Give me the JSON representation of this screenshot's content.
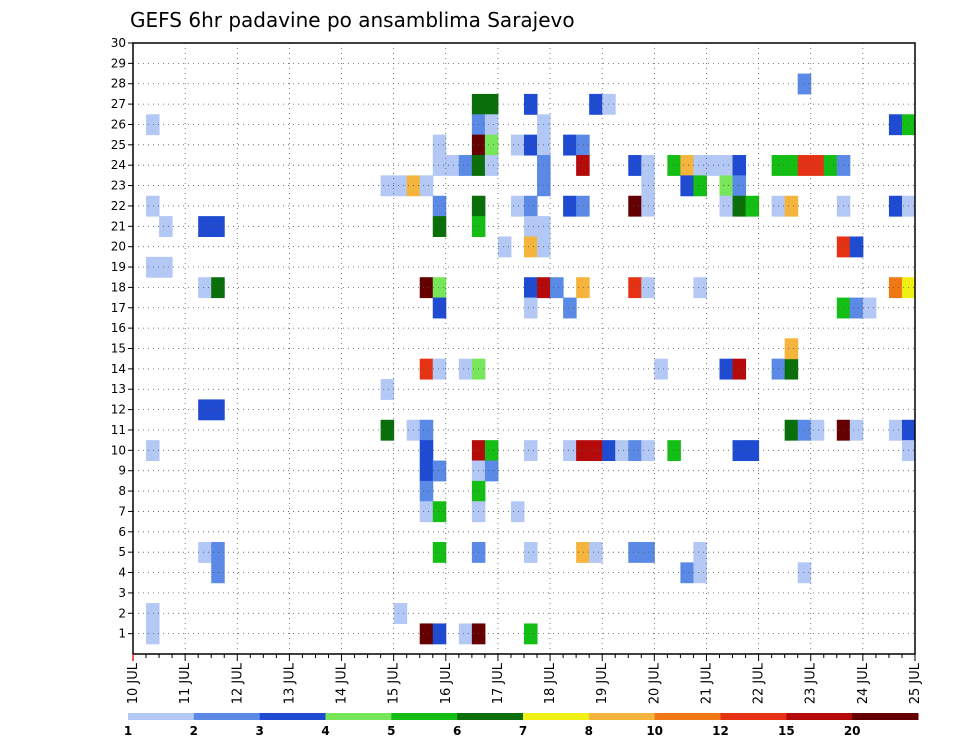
{
  "chart_data": {
    "type": "heatmap",
    "title": "GEFS 6hr padavine po ansamblima Sarajevo",
    "xlabel": "",
    "ylabel": "",
    "x_ticks": [
      "10 JUL",
      "11 JUL",
      "12 JUL",
      "13 JUL",
      "14 JUL",
      "15 JUL",
      "16 JUL",
      "17 JUL",
      "18 JUL",
      "19 JUL",
      "20 JUL",
      "21 JUL",
      "22 JUL",
      "23 JUL",
      "24 JUL",
      "25 JUL"
    ],
    "x_range_days": [
      10,
      25
    ],
    "y_ticks": [
      1,
      2,
      3,
      4,
      5,
      6,
      7,
      8,
      9,
      10,
      11,
      12,
      13,
      14,
      15,
      16,
      17,
      18,
      19,
      20,
      21,
      22,
      23,
      24,
      25,
      26,
      27,
      28,
      29,
      30
    ],
    "ylim": [
      0,
      30
    ],
    "grid": true,
    "legend_position": "bottom",
    "legend": {
      "labels": [
        "1",
        "2",
        "3",
        "4",
        "5",
        "6",
        "7",
        "8",
        "10",
        "12",
        "15",
        "20"
      ],
      "colors": [
        "#b4c8f5",
        "#5a8ae6",
        "#1e4bd2",
        "#78e65a",
        "#14be14",
        "#0a6e0a",
        "#f0f014",
        "#f5b43c",
        "#f07814",
        "#e63214",
        "#b40a0a",
        "#640000"
      ]
    },
    "cells": [
      {
        "day": 10.25,
        "member": 26,
        "bin": 1
      },
      {
        "day": 10.25,
        "member": 22,
        "bin": 1
      },
      {
        "day": 10.5,
        "member": 21,
        "bin": 1
      },
      {
        "day": 10.25,
        "member": 19,
        "bin": 1
      },
      {
        "day": 10.5,
        "member": 19,
        "bin": 1
      },
      {
        "day": 10.25,
        "member": 10,
        "bin": 1
      },
      {
        "day": 10.25,
        "member": 2,
        "bin": 1
      },
      {
        "day": 10.25,
        "member": 1,
        "bin": 1
      },
      {
        "day": 11.25,
        "member": 21,
        "bin": 3
      },
      {
        "day": 11.5,
        "member": 21,
        "bin": 3
      },
      {
        "day": 11.25,
        "member": 18,
        "bin": 1
      },
      {
        "day": 11.5,
        "member": 18,
        "bin": 6
      },
      {
        "day": 11.25,
        "member": 12,
        "bin": 3
      },
      {
        "day": 11.5,
        "member": 12,
        "bin": 3
      },
      {
        "day": 11.25,
        "member": 5,
        "bin": 1
      },
      {
        "day": 11.5,
        "member": 5,
        "bin": 2
      },
      {
        "day": 11.5,
        "member": 4,
        "bin": 2
      },
      {
        "day": 14.75,
        "member": 23,
        "bin": 1
      },
      {
        "day": 15.0,
        "member": 23,
        "bin": 1
      },
      {
        "day": 15.25,
        "member": 23,
        "bin": 8
      },
      {
        "day": 15.5,
        "member": 23,
        "bin": 1
      },
      {
        "day": 14.75,
        "member": 13,
        "bin": 1
      },
      {
        "day": 14.75,
        "member": 11,
        "bin": 6
      },
      {
        "day": 15.25,
        "member": 11,
        "bin": 1
      },
      {
        "day": 15.5,
        "member": 11,
        "bin": 2
      },
      {
        "day": 15.0,
        "member": 2,
        "bin": 1
      },
      {
        "day": 15.5,
        "member": 18,
        "bin": 12
      },
      {
        "day": 15.75,
        "member": 18,
        "bin": 4
      },
      {
        "day": 15.5,
        "member": 14,
        "bin": 10
      },
      {
        "day": 15.75,
        "member": 14,
        "bin": 1
      },
      {
        "day": 15.5,
        "member": 10,
        "bin": 3
      },
      {
        "day": 15.5,
        "member": 9,
        "bin": 3
      },
      {
        "day": 15.75,
        "member": 9,
        "bin": 2
      },
      {
        "day": 15.5,
        "member": 8,
        "bin": 2
      },
      {
        "day": 15.5,
        "member": 7,
        "bin": 1
      },
      {
        "day": 15.75,
        "member": 7,
        "bin": 5
      },
      {
        "day": 15.5,
        "member": 1,
        "bin": 12
      },
      {
        "day": 15.75,
        "member": 1,
        "bin": 3
      },
      {
        "day": 15.75,
        "member": 25,
        "bin": 1
      },
      {
        "day": 15.75,
        "member": 24,
        "bin": 1
      },
      {
        "day": 16.0,
        "member": 24,
        "bin": 1
      },
      {
        "day": 16.25,
        "member": 24,
        "bin": 2
      },
      {
        "day": 15.75,
        "member": 22,
        "bin": 2
      },
      {
        "day": 15.75,
        "member": 21,
        "bin": 6
      },
      {
        "day": 15.75,
        "member": 17,
        "bin": 3
      },
      {
        "day": 15.75,
        "member": 5,
        "bin": 5
      },
      {
        "day": 16.25,
        "member": 14,
        "bin": 1
      },
      {
        "day": 16.5,
        "member": 14,
        "bin": 4
      },
      {
        "day": 16.25,
        "member": 1,
        "bin": 1
      },
      {
        "day": 16.5,
        "member": 27,
        "bin": 6
      },
      {
        "day": 16.75,
        "member": 27,
        "bin": 6
      },
      {
        "day": 16.5,
        "member": 26,
        "bin": 2
      },
      {
        "day": 16.75,
        "member": 26,
        "bin": 1
      },
      {
        "day": 16.5,
        "member": 25,
        "bin": 12
      },
      {
        "day": 16.75,
        "member": 25,
        "bin": 4
      },
      {
        "day": 16.5,
        "member": 24,
        "bin": 6
      },
      {
        "day": 16.75,
        "member": 24,
        "bin": 1
      },
      {
        "day": 16.5,
        "member": 22,
        "bin": 6
      },
      {
        "day": 16.5,
        "member": 21,
        "bin": 5
      },
      {
        "day": 16.5,
        "member": 10,
        "bin": 11
      },
      {
        "day": 16.75,
        "member": 10,
        "bin": 5
      },
      {
        "day": 16.5,
        "member": 9,
        "bin": 1
      },
      {
        "day": 16.75,
        "member": 9,
        "bin": 2
      },
      {
        "day": 16.5,
        "member": 8,
        "bin": 5
      },
      {
        "day": 16.5,
        "member": 7,
        "bin": 1
      },
      {
        "day": 16.5,
        "member": 5,
        "bin": 2
      },
      {
        "day": 16.5,
        "member": 1,
        "bin": 12
      },
      {
        "day": 17.0,
        "member": 20,
        "bin": 1
      },
      {
        "day": 17.25,
        "member": 25,
        "bin": 1
      },
      {
        "day": 17.25,
        "member": 22,
        "bin": 1
      },
      {
        "day": 17.25,
        "member": 7,
        "bin": 1
      },
      {
        "day": 17.5,
        "member": 27,
        "bin": 3
      },
      {
        "day": 17.5,
        "member": 25,
        "bin": 3
      },
      {
        "day": 17.5,
        "member": 22,
        "bin": 2
      },
      {
        "day": 17.5,
        "member": 21,
        "bin": 1
      },
      {
        "day": 17.5,
        "member": 20,
        "bin": 8
      },
      {
        "day": 17.5,
        "member": 18,
        "bin": 3
      },
      {
        "day": 17.5,
        "member": 17,
        "bin": 1
      },
      {
        "day": 17.5,
        "member": 10,
        "bin": 1
      },
      {
        "day": 17.5,
        "member": 5,
        "bin": 1
      },
      {
        "day": 17.5,
        "member": 1,
        "bin": 5
      },
      {
        "day": 17.75,
        "member": 26,
        "bin": 1
      },
      {
        "day": 17.75,
        "member": 25,
        "bin": 1
      },
      {
        "day": 17.75,
        "member": 24,
        "bin": 2
      },
      {
        "day": 17.75,
        "member": 23,
        "bin": 2
      },
      {
        "day": 17.75,
        "member": 21,
        "bin": 1
      },
      {
        "day": 17.75,
        "member": 20,
        "bin": 1
      },
      {
        "day": 17.75,
        "member": 18,
        "bin": 11
      },
      {
        "day": 18.0,
        "member": 18,
        "bin": 2
      },
      {
        "day": 18.25,
        "member": 25,
        "bin": 3
      },
      {
        "day": 18.5,
        "member": 25,
        "bin": 2
      },
      {
        "day": 18.25,
        "member": 22,
        "bin": 3
      },
      {
        "day": 18.5,
        "member": 22,
        "bin": 2
      },
      {
        "day": 18.25,
        "member": 17,
        "bin": 2
      },
      {
        "day": 18.25,
        "member": 10,
        "bin": 1
      },
      {
        "day": 18.5,
        "member": 24,
        "bin": 11
      },
      {
        "day": 18.5,
        "member": 18,
        "bin": 8
      },
      {
        "day": 18.5,
        "member": 10,
        "bin": 11
      },
      {
        "day": 18.75,
        "member": 10,
        "bin": 11
      },
      {
        "day": 18.5,
        "member": 5,
        "bin": 8
      },
      {
        "day": 18.75,
        "member": 5,
        "bin": 1
      },
      {
        "day": 18.75,
        "member": 27,
        "bin": 3
      },
      {
        "day": 19.0,
        "member": 27,
        "bin": 1
      },
      {
        "day": 19.0,
        "member": 10,
        "bin": 3
      },
      {
        "day": 19.25,
        "member": 10,
        "bin": 1
      },
      {
        "day": 19.5,
        "member": 10,
        "bin": 2
      },
      {
        "day": 19.75,
        "member": 10,
        "bin": 1
      },
      {
        "day": 19.5,
        "member": 24,
        "bin": 3
      },
      {
        "day": 19.75,
        "member": 24,
        "bin": 1
      },
      {
        "day": 19.75,
        "member": 23,
        "bin": 1
      },
      {
        "day": 19.5,
        "member": 22,
        "bin": 12
      },
      {
        "day": 19.75,
        "member": 22,
        "bin": 1
      },
      {
        "day": 19.5,
        "member": 18,
        "bin": 10
      },
      {
        "day": 19.75,
        "member": 18,
        "bin": 1
      },
      {
        "day": 19.5,
        "member": 5,
        "bin": 2
      },
      {
        "day": 19.75,
        "member": 5,
        "bin": 2
      },
      {
        "day": 20.0,
        "member": 14,
        "bin": 1
      },
      {
        "day": 20.25,
        "member": 24,
        "bin": 5
      },
      {
        "day": 20.25,
        "member": 10,
        "bin": 5
      },
      {
        "day": 20.5,
        "member": 24,
        "bin": 8
      },
      {
        "day": 20.5,
        "member": 23,
        "bin": 3
      },
      {
        "day": 20.5,
        "member": 4,
        "bin": 2
      },
      {
        "day": 20.75,
        "member": 24,
        "bin": 1
      },
      {
        "day": 20.75,
        "member": 23,
        "bin": 5
      },
      {
        "day": 20.75,
        "member": 18,
        "bin": 1
      },
      {
        "day": 20.75,
        "member": 5,
        "bin": 1
      },
      {
        "day": 20.75,
        "member": 4,
        "bin": 1
      },
      {
        "day": 21.0,
        "member": 24,
        "bin": 1
      },
      {
        "day": 21.25,
        "member": 24,
        "bin": 1
      },
      {
        "day": 21.25,
        "member": 23,
        "bin": 4
      },
      {
        "day": 21.25,
        "member": 22,
        "bin": 1
      },
      {
        "day": 21.25,
        "member": 14,
        "bin": 3
      },
      {
        "day": 21.5,
        "member": 24,
        "bin": 3
      },
      {
        "day": 21.5,
        "member": 23,
        "bin": 2
      },
      {
        "day": 21.5,
        "member": 22,
        "bin": 6
      },
      {
        "day": 21.5,
        "member": 14,
        "bin": 11
      },
      {
        "day": 21.5,
        "member": 10,
        "bin": 3
      },
      {
        "day": 21.75,
        "member": 10,
        "bin": 3
      },
      {
        "day": 21.75,
        "member": 22,
        "bin": 5
      },
      {
        "day": 22.25,
        "member": 24,
        "bin": 5
      },
      {
        "day": 22.5,
        "member": 24,
        "bin": 5
      },
      {
        "day": 22.25,
        "member": 22,
        "bin": 1
      },
      {
        "day": 22.5,
        "member": 22,
        "bin": 8
      },
      {
        "day": 22.25,
        "member": 14,
        "bin": 2
      },
      {
        "day": 22.5,
        "member": 14,
        "bin": 6
      },
      {
        "day": 22.5,
        "member": 15,
        "bin": 8
      },
      {
        "day": 22.5,
        "member": 11,
        "bin": 6
      },
      {
        "day": 22.75,
        "member": 11,
        "bin": 2
      },
      {
        "day": 23.0,
        "member": 11,
        "bin": 1
      },
      {
        "day": 22.75,
        "member": 28,
        "bin": 2
      },
      {
        "day": 22.75,
        "member": 24,
        "bin": 10
      },
      {
        "day": 22.75,
        "member": 4,
        "bin": 1
      },
      {
        "day": 23.0,
        "member": 24,
        "bin": 10
      },
      {
        "day": 23.25,
        "member": 24,
        "bin": 5
      },
      {
        "day": 23.5,
        "member": 24,
        "bin": 2
      },
      {
        "day": 23.5,
        "member": 22,
        "bin": 1
      },
      {
        "day": 23.5,
        "member": 20,
        "bin": 10
      },
      {
        "day": 23.75,
        "member": 20,
        "bin": 3
      },
      {
        "day": 23.5,
        "member": 17,
        "bin": 5
      },
      {
        "day": 23.75,
        "member": 17,
        "bin": 2
      },
      {
        "day": 24.0,
        "member": 17,
        "bin": 1
      },
      {
        "day": 23.5,
        "member": 11,
        "bin": 12
      },
      {
        "day": 23.75,
        "member": 11,
        "bin": 1
      },
      {
        "day": 24.5,
        "member": 26,
        "bin": 3
      },
      {
        "day": 24.75,
        "member": 26,
        "bin": 5
      },
      {
        "day": 24.5,
        "member": 22,
        "bin": 3
      },
      {
        "day": 24.75,
        "member": 22,
        "bin": 1
      },
      {
        "day": 24.5,
        "member": 18,
        "bin": 9
      },
      {
        "day": 24.75,
        "member": 18,
        "bin": 7
      },
      {
        "day": 24.5,
        "member": 11,
        "bin": 1
      },
      {
        "day": 24.75,
        "member": 11,
        "bin": 3
      },
      {
        "day": 24.75,
        "member": 10,
        "bin": 1
      }
    ]
  }
}
